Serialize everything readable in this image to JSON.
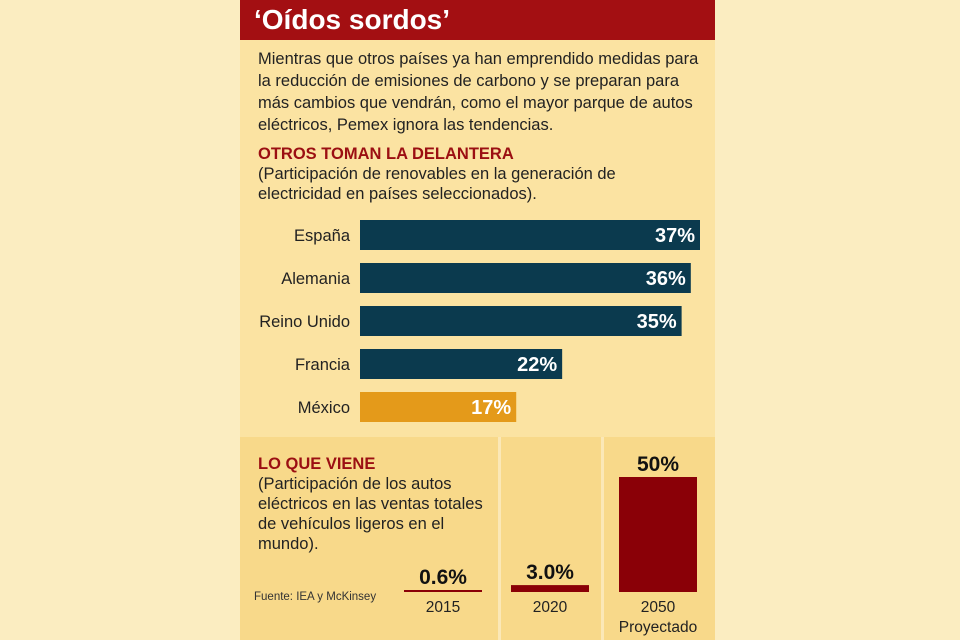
{
  "header": {
    "title": "‘Oídos sordos’"
  },
  "intro": "Mientras que otros países ya han emprendido medidas para la reducción de emisiones de carbono y se preparan para más cambios que vendrán, como el mayor parque de autos eléctricos, Pemex ignora las tendencias.",
  "section1": {
    "heading": "OTROS TOMAN LA DELANTERA",
    "subtitle": "(Participación de renovables en la generación de electricidad en países seleccionados)."
  },
  "section2": {
    "heading": "LO QUE VIENE",
    "subtitle": "(Participación de los autos eléctricos en las ventas totales de vehículos ligeros en el mundo)."
  },
  "source": "Fuente: IEA y McKinsey",
  "colors": {
    "accent": "#a30f12",
    "bar": "#0b3a4e",
    "highlight": "#e49a1a",
    "ev_bar": "#8a0007"
  },
  "chart_data": [
    {
      "type": "bar",
      "orientation": "horizontal",
      "categories": [
        "España",
        "Alemania",
        "Reino Unido",
        "Francia",
        "México"
      ],
      "values": [
        37,
        36,
        35,
        22,
        17
      ],
      "labels": [
        "37%",
        "36%",
        "35%",
        "22%",
        "17%"
      ],
      "highlight": "México",
      "title": "OTROS TOMAN LA DELANTERA",
      "xlim": [
        0,
        37
      ]
    },
    {
      "type": "bar",
      "categories": [
        "2015",
        "2020",
        "2050 Proyectado"
      ],
      "values": [
        0.6,
        3.0,
        50
      ],
      "labels": [
        "0.6%",
        "3.0%",
        "50%"
      ],
      "title": "LO QUE VIENE",
      "ylim": [
        0,
        50
      ]
    }
  ]
}
